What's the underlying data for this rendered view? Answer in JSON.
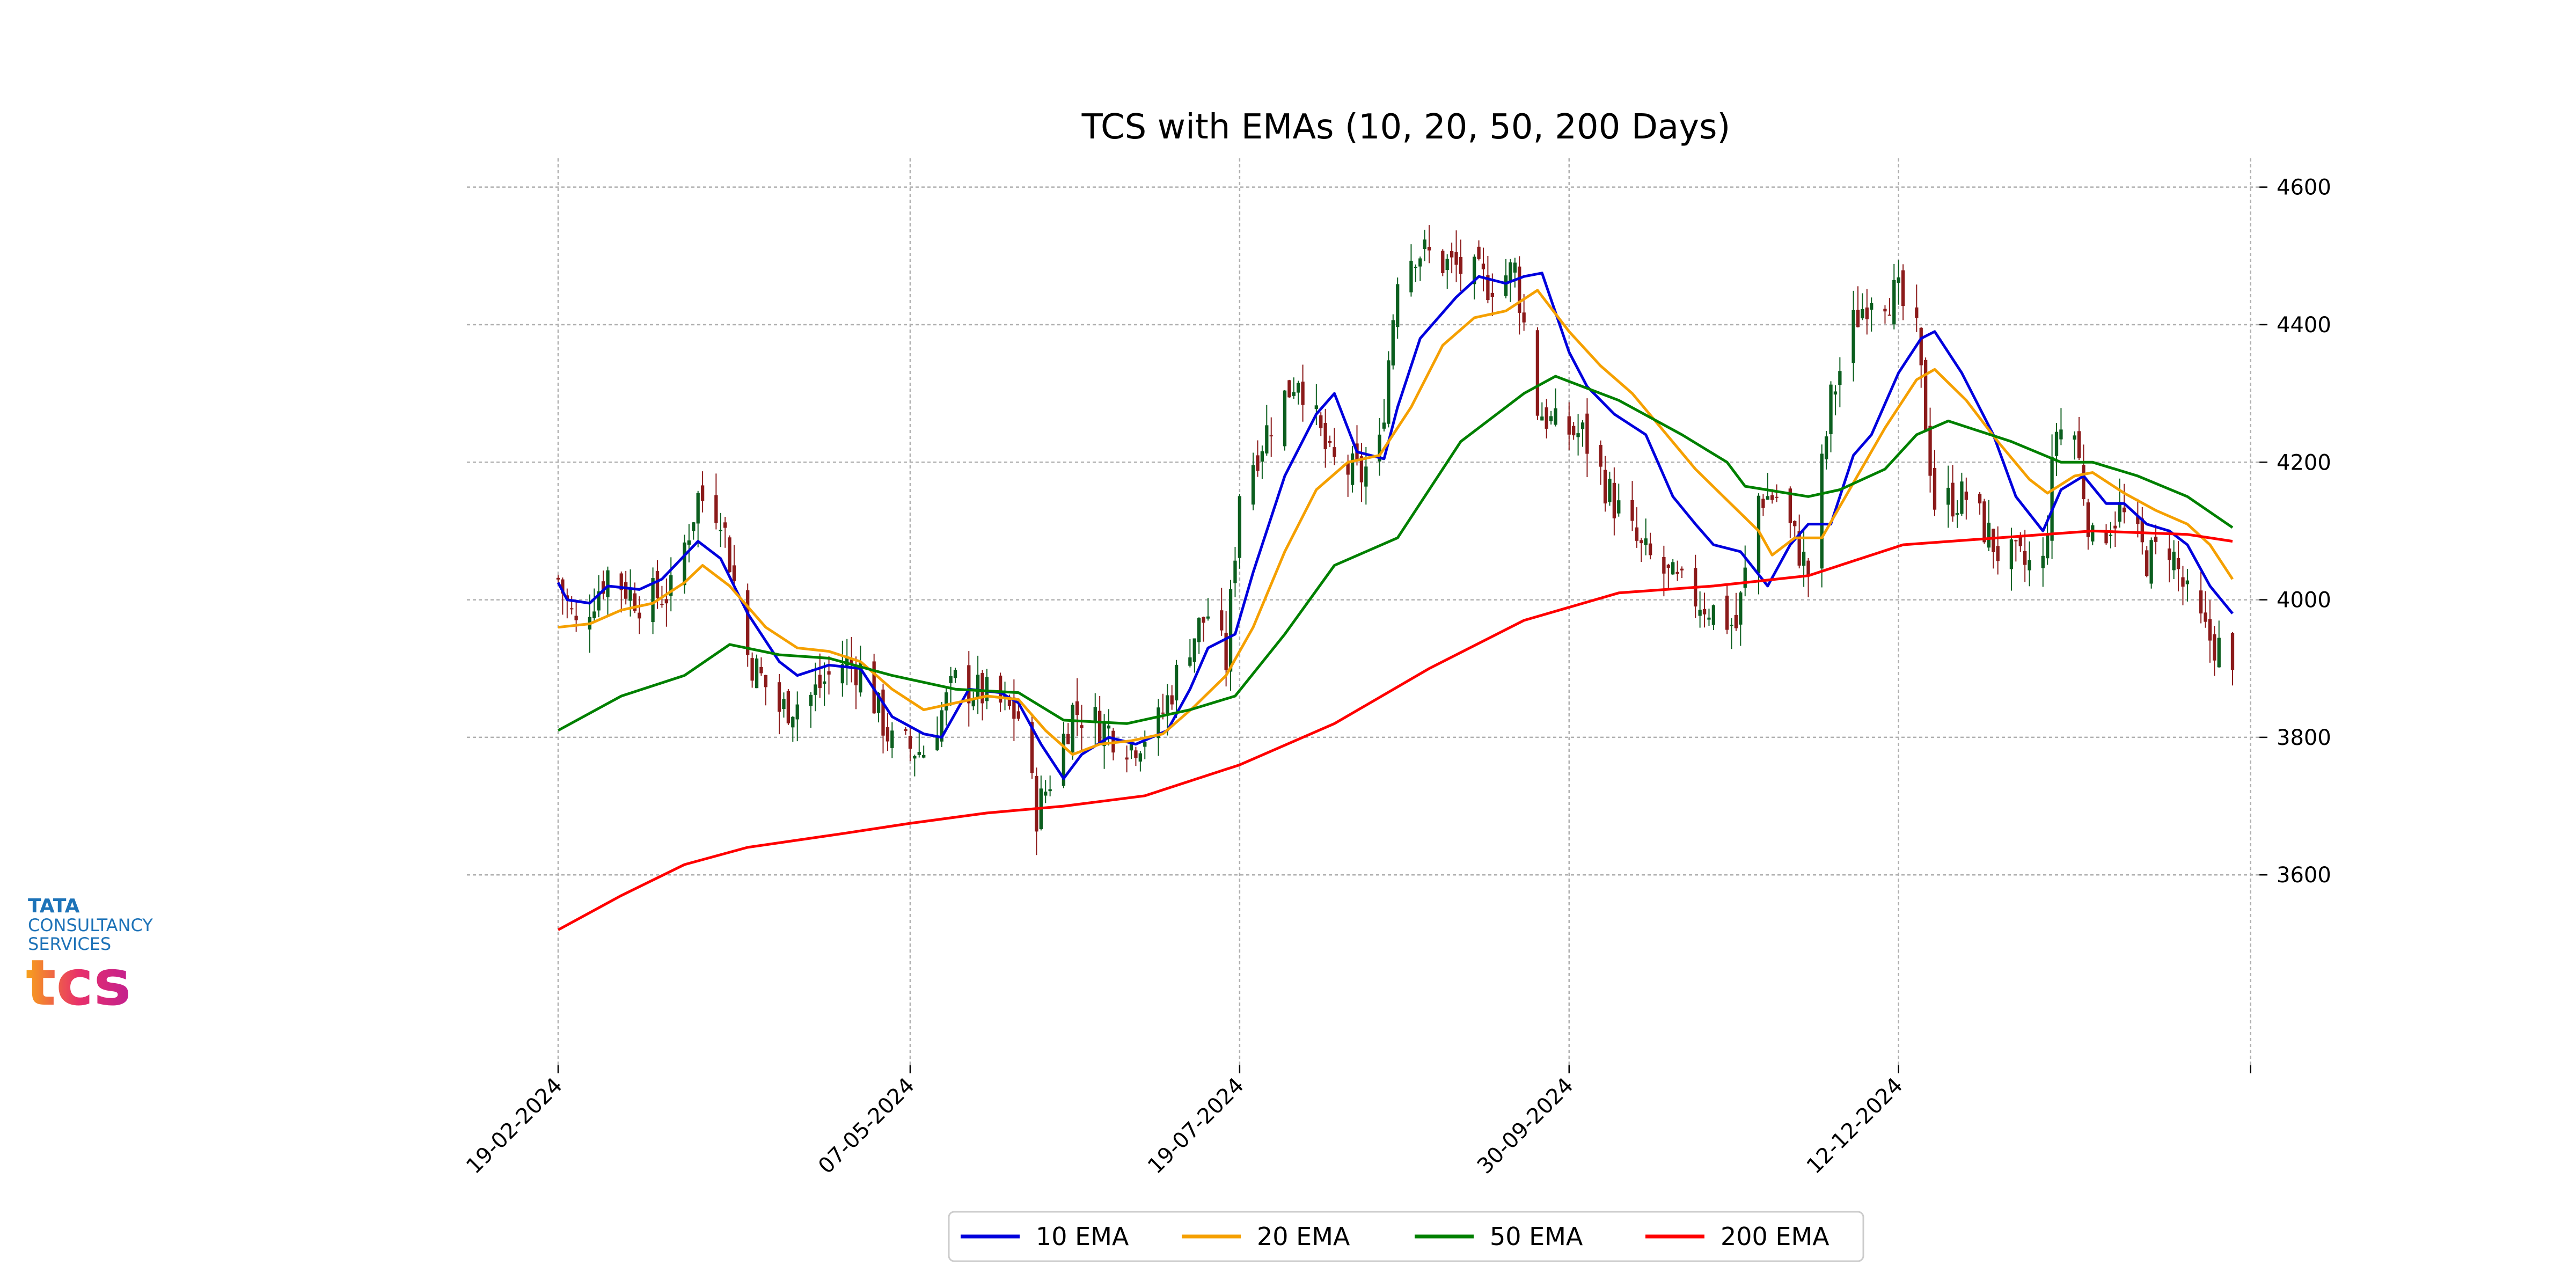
{
  "chart_data": {
    "type": "candlestick-line",
    "title": "TCS with EMAs (10, 20, 50, 200 Days)",
    "x_start": "2024-02-19",
    "x_end": "2025-02-24",
    "x_ticks": [
      "19-02-2024",
      "07-05-2024",
      "19-07-2024",
      "30-09-2024",
      "12-12-2024"
    ],
    "ylim": [
      3480,
      4620
    ],
    "y_ticks": [
      3600,
      3800,
      4000,
      4200,
      4400,
      4600
    ],
    "grid": true,
    "legend_position": "bottom-center",
    "candle_up_color": "#0b5e1e",
    "candle_down_color": "#8b1a1a",
    "candle_anchors": [
      [
        "2024-02-19",
        4030
      ],
      [
        "2024-02-23",
        3960
      ],
      [
        "2024-03-01",
        4040
      ],
      [
        "2024-03-08",
        4000
      ],
      [
        "2024-03-15",
        4010
      ],
      [
        "2024-03-21",
        4150
      ],
      [
        "2024-03-26",
        4130
      ],
      [
        "2024-04-01",
        3920
      ],
      [
        "2024-04-08",
        3840
      ],
      [
        "2024-04-15",
        3860
      ],
      [
        "2024-04-22",
        3910
      ],
      [
        "2024-04-26",
        3900
      ],
      [
        "2024-05-03",
        3790
      ],
      [
        "2024-05-10",
        3780
      ],
      [
        "2024-05-17",
        3880
      ],
      [
        "2024-05-24",
        3860
      ],
      [
        "2024-05-31",
        3830
      ],
      [
        "2024-06-04",
        3690
      ],
      [
        "2024-06-07",
        3740
      ],
      [
        "2024-06-12",
        3840
      ],
      [
        "2024-06-18",
        3820
      ],
      [
        "2024-06-25",
        3790
      ],
      [
        "2024-07-01",
        3820
      ],
      [
        "2024-07-08",
        3940
      ],
      [
        "2024-07-12",
        3980
      ],
      [
        "2024-07-16",
        3910
      ],
      [
        "2024-07-19",
        4160
      ],
      [
        "2024-07-26",
        4260
      ],
      [
        "2024-08-01",
        4330
      ],
      [
        "2024-08-08",
        4200
      ],
      [
        "2024-08-15",
        4180
      ],
      [
        "2024-08-19",
        4220
      ],
      [
        "2024-08-23",
        4480
      ],
      [
        "2024-08-27",
        4510
      ],
      [
        "2024-09-02",
        4490
      ],
      [
        "2024-09-06",
        4480
      ],
      [
        "2024-09-12",
        4460
      ],
      [
        "2024-09-18",
        4480
      ],
      [
        "2024-09-23",
        4280
      ],
      [
        "2024-09-27",
        4250
      ],
      [
        "2024-10-03",
        4240
      ],
      [
        "2024-10-10",
        4140
      ],
      [
        "2024-10-16",
        4070
      ],
      [
        "2024-10-24",
        4020
      ],
      [
        "2024-10-31",
        3990
      ],
      [
        "2024-11-06",
        3960
      ],
      [
        "2024-11-11",
        4150
      ],
      [
        "2024-11-15",
        4150
      ],
      [
        "2024-11-22",
        4040
      ],
      [
        "2024-11-27",
        4290
      ],
      [
        "2024-12-02",
        4400
      ],
      [
        "2024-12-06",
        4450
      ],
      [
        "2024-12-12",
        4440
      ],
      [
        "2024-12-16",
        4380
      ],
      [
        "2024-12-20",
        4140
      ],
      [
        "2024-12-27",
        4150
      ],
      [
        "2025-01-03",
        4070
      ],
      [
        "2025-01-09",
        4050
      ],
      [
        "2025-01-13",
        4050
      ],
      [
        "2025-01-16",
        4250
      ],
      [
        "2025-01-20",
        4240
      ],
      [
        "2025-01-24",
        4080
      ],
      [
        "2025-01-30",
        4130
      ],
      [
        "2025-02-05",
        4060
      ],
      [
        "2025-02-10",
        4080
      ],
      [
        "2025-02-14",
        4000
      ],
      [
        "2025-02-18",
        3950
      ],
      [
        "2025-02-21",
        3930
      ],
      [
        "2025-02-24",
        3880
      ]
    ],
    "series": [
      {
        "name": "10 EMA",
        "color": "#0000dd",
        "points": [
          [
            "2024-02-19",
            4025
          ],
          [
            "2024-02-21",
            4000
          ],
          [
            "2024-02-26",
            3995
          ],
          [
            "2024-03-01",
            4020
          ],
          [
            "2024-03-08",
            4015
          ],
          [
            "2024-03-13",
            4030
          ],
          [
            "2024-03-21",
            4085
          ],
          [
            "2024-03-26",
            4060
          ],
          [
            "2024-04-01",
            3980
          ],
          [
            "2024-04-08",
            3910
          ],
          [
            "2024-04-12",
            3890
          ],
          [
            "2024-04-19",
            3905
          ],
          [
            "2024-04-26",
            3900
          ],
          [
            "2024-05-03",
            3830
          ],
          [
            "2024-05-10",
            3805
          ],
          [
            "2024-05-14",
            3800
          ],
          [
            "2024-05-20",
            3870
          ],
          [
            "2024-05-27",
            3865
          ],
          [
            "2024-05-31",
            3850
          ],
          [
            "2024-06-05",
            3790
          ],
          [
            "2024-06-10",
            3740
          ],
          [
            "2024-06-14",
            3775
          ],
          [
            "2024-06-20",
            3800
          ],
          [
            "2024-06-26",
            3790
          ],
          [
            "2024-07-03",
            3810
          ],
          [
            "2024-07-08",
            3870
          ],
          [
            "2024-07-12",
            3930
          ],
          [
            "2024-07-18",
            3950
          ],
          [
            "2024-07-22",
            4040
          ],
          [
            "2024-07-29",
            4180
          ],
          [
            "2024-08-05",
            4270
          ],
          [
            "2024-08-09",
            4300
          ],
          [
            "2024-08-14",
            4215
          ],
          [
            "2024-08-20",
            4205
          ],
          [
            "2024-08-23",
            4280
          ],
          [
            "2024-08-28",
            4380
          ],
          [
            "2024-09-05",
            4440
          ],
          [
            "2024-09-10",
            4470
          ],
          [
            "2024-09-16",
            4460
          ],
          [
            "2024-09-20",
            4470
          ],
          [
            "2024-09-24",
            4475
          ],
          [
            "2024-09-30",
            4360
          ],
          [
            "2024-10-04",
            4310
          ],
          [
            "2024-10-10",
            4270
          ],
          [
            "2024-10-17",
            4240
          ],
          [
            "2024-10-23",
            4150
          ],
          [
            "2024-10-28",
            4110
          ],
          [
            "2024-11-01",
            4080
          ],
          [
            "2024-11-07",
            4070
          ],
          [
            "2024-11-13",
            4020
          ],
          [
            "2024-11-18",
            4080
          ],
          [
            "2024-11-22",
            4110
          ],
          [
            "2024-11-27",
            4110
          ],
          [
            "2024-12-02",
            4210
          ],
          [
            "2024-12-06",
            4240
          ],
          [
            "2024-12-12",
            4330
          ],
          [
            "2024-12-17",
            4380
          ],
          [
            "2024-12-20",
            4390
          ],
          [
            "2024-12-26",
            4330
          ],
          [
            "2025-01-02",
            4240
          ],
          [
            "2025-01-07",
            4150
          ],
          [
            "2025-01-13",
            4100
          ],
          [
            "2025-01-17",
            4160
          ],
          [
            "2025-01-22",
            4180
          ],
          [
            "2025-01-27",
            4140
          ],
          [
            "2025-01-31",
            4140
          ],
          [
            "2025-02-05",
            4110
          ],
          [
            "2025-02-10",
            4100
          ],
          [
            "2025-02-14",
            4080
          ],
          [
            "2025-02-19",
            4020
          ],
          [
            "2025-02-24",
            3980
          ]
        ]
      },
      {
        "name": "20 EMA",
        "color": "#f5a000",
        "points": [
          [
            "2024-02-19",
            3960
          ],
          [
            "2024-02-26",
            3965
          ],
          [
            "2024-03-04",
            3985
          ],
          [
            "2024-03-11",
            3995
          ],
          [
            "2024-03-18",
            4025
          ],
          [
            "2024-03-22",
            4050
          ],
          [
            "2024-03-28",
            4020
          ],
          [
            "2024-04-05",
            3960
          ],
          [
            "2024-04-12",
            3930
          ],
          [
            "2024-04-19",
            3925
          ],
          [
            "2024-04-26",
            3910
          ],
          [
            "2024-05-03",
            3870
          ],
          [
            "2024-05-10",
            3840
          ],
          [
            "2024-05-17",
            3850
          ],
          [
            "2024-05-24",
            3860
          ],
          [
            "2024-05-31",
            3855
          ],
          [
            "2024-06-06",
            3810
          ],
          [
            "2024-06-12",
            3775
          ],
          [
            "2024-06-18",
            3790
          ],
          [
            "2024-06-25",
            3795
          ],
          [
            "2024-07-02",
            3805
          ],
          [
            "2024-07-09",
            3845
          ],
          [
            "2024-07-16",
            3890
          ],
          [
            "2024-07-22",
            3960
          ],
          [
            "2024-07-29",
            4070
          ],
          [
            "2024-08-05",
            4160
          ],
          [
            "2024-08-12",
            4200
          ],
          [
            "2024-08-19",
            4210
          ],
          [
            "2024-08-26",
            4280
          ],
          [
            "2024-09-02",
            4370
          ],
          [
            "2024-09-09",
            4410
          ],
          [
            "2024-09-16",
            4420
          ],
          [
            "2024-09-23",
            4450
          ],
          [
            "2024-09-30",
            4390
          ],
          [
            "2024-10-07",
            4340
          ],
          [
            "2024-10-14",
            4300
          ],
          [
            "2024-10-21",
            4245
          ],
          [
            "2024-10-28",
            4190
          ],
          [
            "2024-11-04",
            4145
          ],
          [
            "2024-11-11",
            4100
          ],
          [
            "2024-11-14",
            4065
          ],
          [
            "2024-11-19",
            4090
          ],
          [
            "2024-11-25",
            4090
          ],
          [
            "2024-12-02",
            4170
          ],
          [
            "2024-12-09",
            4250
          ],
          [
            "2024-12-16",
            4320
          ],
          [
            "2024-12-20",
            4335
          ],
          [
            "2024-12-27",
            4290
          ],
          [
            "2025-01-03",
            4230
          ],
          [
            "2025-01-10",
            4175
          ],
          [
            "2025-01-14",
            4155
          ],
          [
            "2025-01-20",
            4180
          ],
          [
            "2025-01-24",
            4185
          ],
          [
            "2025-01-31",
            4155
          ],
          [
            "2025-02-07",
            4130
          ],
          [
            "2025-02-14",
            4110
          ],
          [
            "2025-02-19",
            4080
          ],
          [
            "2025-02-24",
            4030
          ]
        ]
      },
      {
        "name": "50 EMA",
        "color": "#008000",
        "points": [
          [
            "2024-02-19",
            3810
          ],
          [
            "2024-03-04",
            3860
          ],
          [
            "2024-03-18",
            3890
          ],
          [
            "2024-03-28",
            3935
          ],
          [
            "2024-04-08",
            3920
          ],
          [
            "2024-04-19",
            3915
          ],
          [
            "2024-05-03",
            3890
          ],
          [
            "2024-05-17",
            3870
          ],
          [
            "2024-05-31",
            3865
          ],
          [
            "2024-06-10",
            3825
          ],
          [
            "2024-06-24",
            3820
          ],
          [
            "2024-07-08",
            3840
          ],
          [
            "2024-07-18",
            3860
          ],
          [
            "2024-07-29",
            3950
          ],
          [
            "2024-08-09",
            4050
          ],
          [
            "2024-08-23",
            4090
          ],
          [
            "2024-09-06",
            4230
          ],
          [
            "2024-09-20",
            4300
          ],
          [
            "2024-09-27",
            4325
          ],
          [
            "2024-10-11",
            4290
          ],
          [
            "2024-10-25",
            4240
          ],
          [
            "2024-11-04",
            4200
          ],
          [
            "2024-11-08",
            4165
          ],
          [
            "2024-11-22",
            4150
          ],
          [
            "2024-11-29",
            4160
          ],
          [
            "2024-12-09",
            4190
          ],
          [
            "2024-12-16",
            4240
          ],
          [
            "2024-12-23",
            4260
          ],
          [
            "2025-01-06",
            4230
          ],
          [
            "2025-01-17",
            4200
          ],
          [
            "2025-01-24",
            4200
          ],
          [
            "2025-02-03",
            4180
          ],
          [
            "2025-02-14",
            4150
          ],
          [
            "2025-02-24",
            4105
          ]
        ]
      },
      {
        "name": "200 EMA",
        "color": "#ff0000",
        "points": [
          [
            "2024-02-19",
            3520
          ],
          [
            "2024-03-04",
            3570
          ],
          [
            "2024-03-18",
            3615
          ],
          [
            "2024-04-01",
            3640
          ],
          [
            "2024-04-22",
            3660
          ],
          [
            "2024-05-07",
            3675
          ],
          [
            "2024-05-24",
            3690
          ],
          [
            "2024-06-10",
            3700
          ],
          [
            "2024-06-28",
            3715
          ],
          [
            "2024-07-19",
            3760
          ],
          [
            "2024-08-09",
            3820
          ],
          [
            "2024-08-30",
            3900
          ],
          [
            "2024-09-20",
            3970
          ],
          [
            "2024-10-11",
            4010
          ],
          [
            "2024-11-01",
            4020
          ],
          [
            "2024-11-22",
            4035
          ],
          [
            "2024-12-13",
            4080
          ],
          [
            "2025-01-03",
            4090
          ],
          [
            "2025-01-24",
            4100
          ],
          [
            "2025-02-14",
            4095
          ],
          [
            "2025-02-24",
            4085
          ]
        ]
      }
    ]
  },
  "logo": {
    "line1": "TATA",
    "line2": "CONSULTANCY",
    "line3": "SERVICES",
    "mark": "tcs"
  }
}
